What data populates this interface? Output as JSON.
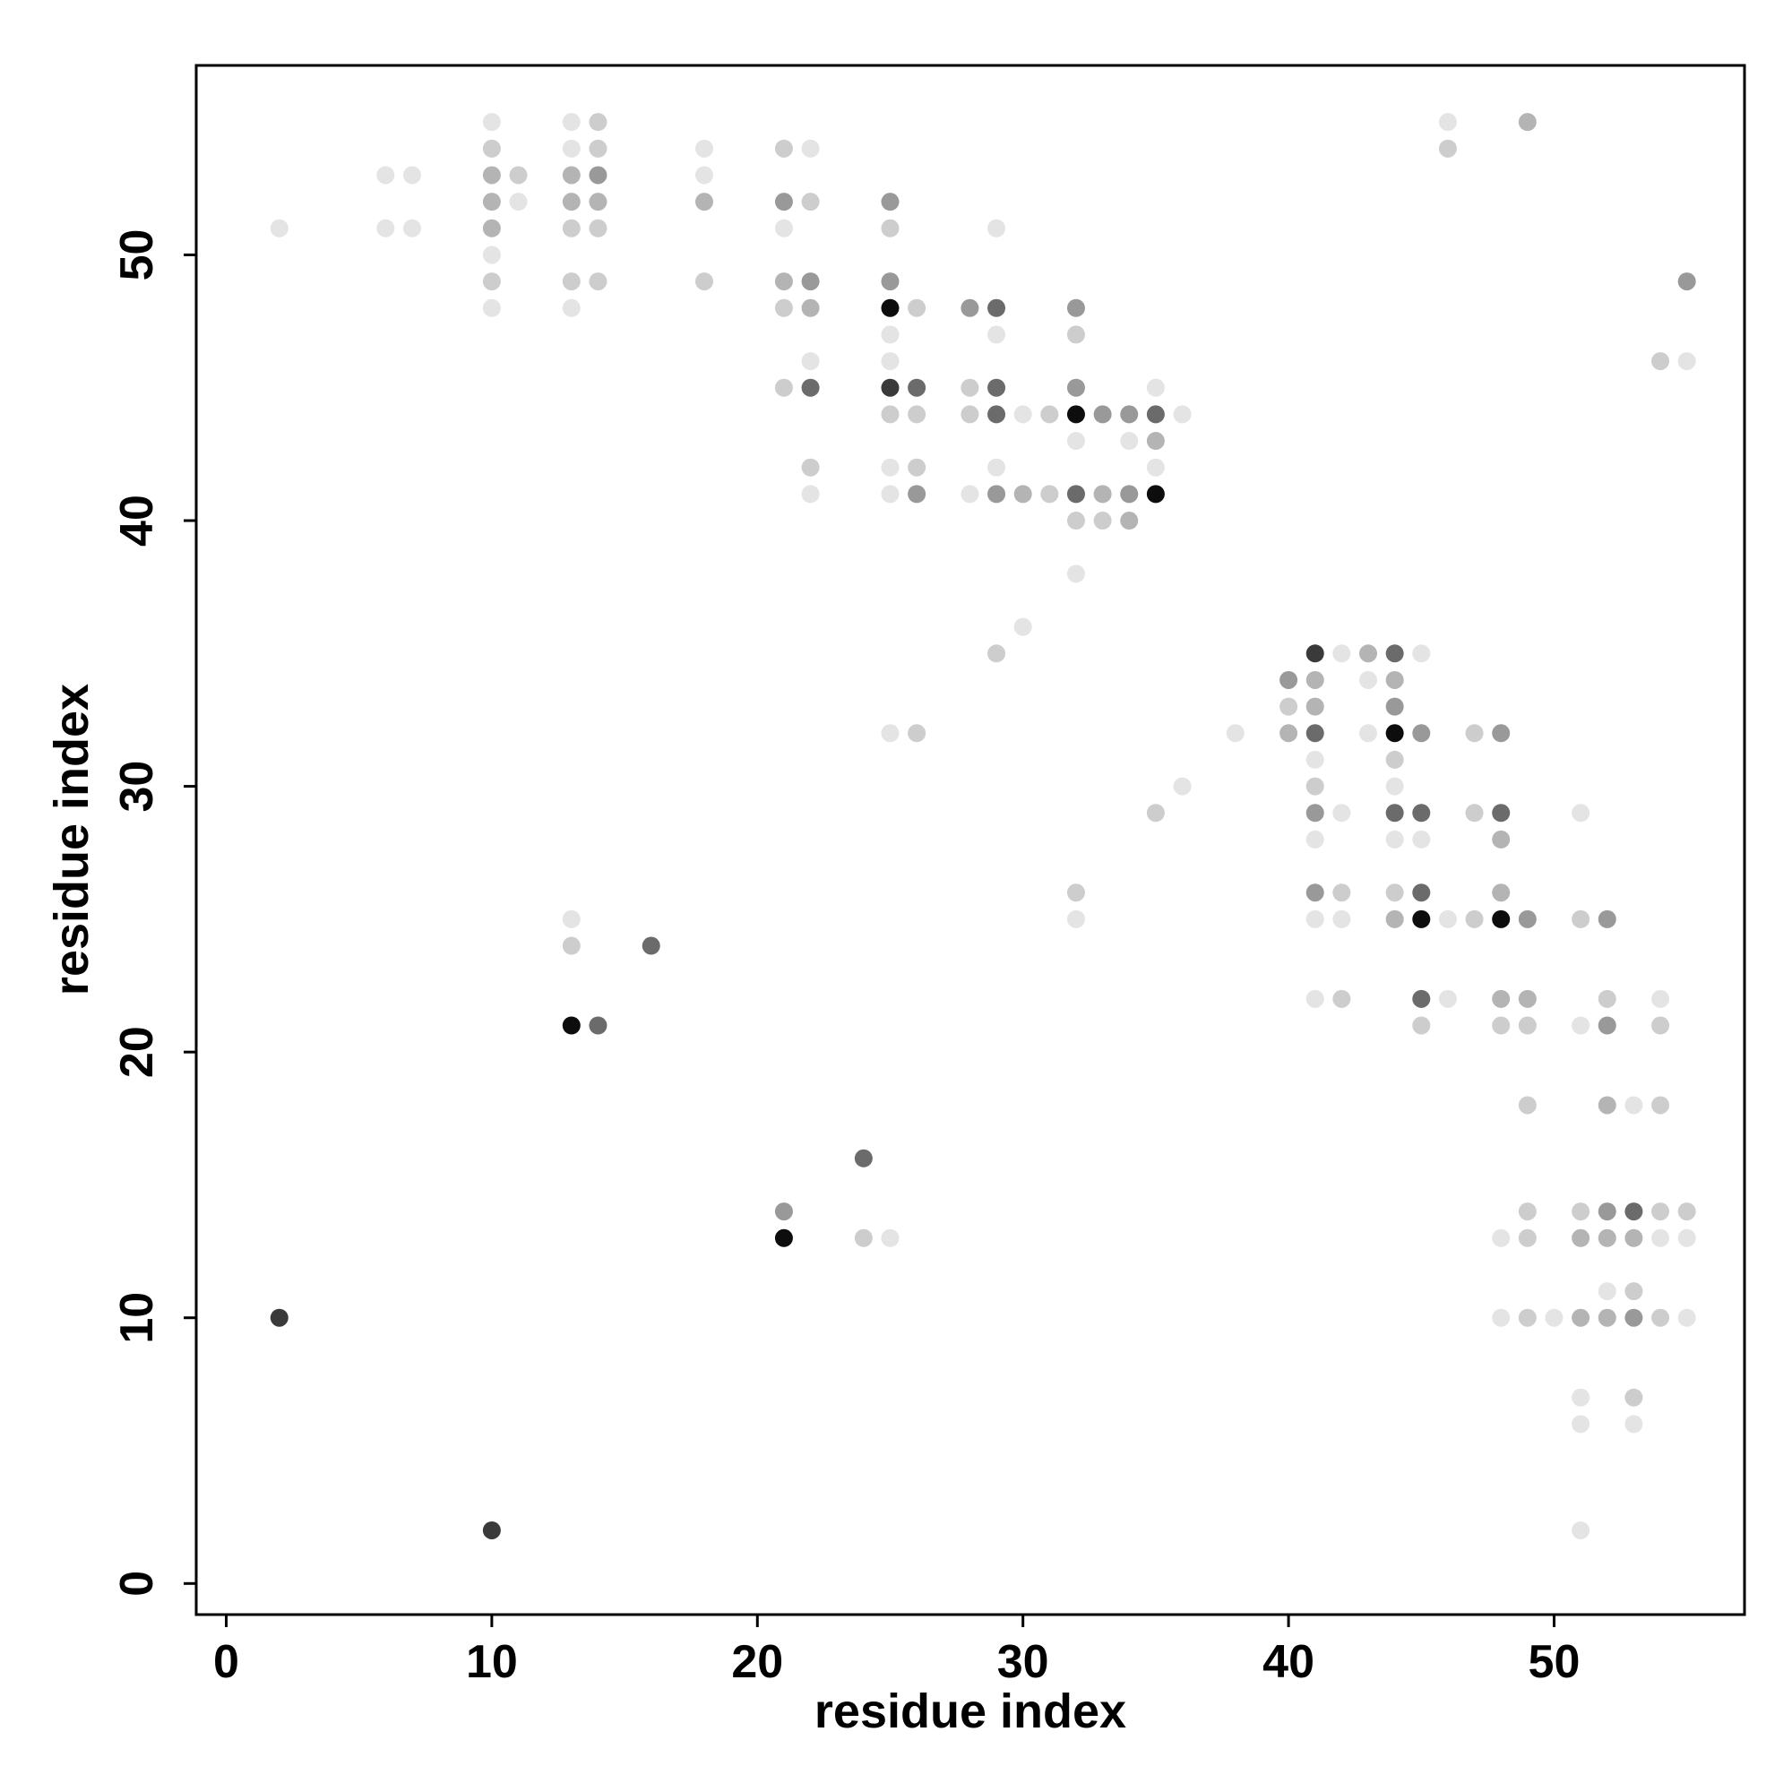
{
  "chart_data": {
    "type": "scatter",
    "x_label": "residue index",
    "y_label": "residue index",
    "xlim": [
      -1.13,
      57.17
    ],
    "ylim": [
      -1.17,
      57.13
    ],
    "xticks": [
      0,
      10,
      20,
      30,
      40,
      50
    ],
    "yticks": [
      0,
      10,
      20,
      30,
      40,
      50
    ],
    "x": [
      10,
      13,
      14,
      46,
      49,
      10,
      13,
      14,
      18,
      21,
      22,
      46,
      6,
      7,
      10,
      11,
      13,
      14,
      18,
      10,
      11,
      13,
      14,
      18,
      21,
      22,
      25,
      2,
      6,
      7,
      10,
      13,
      14,
      21,
      25,
      29,
      10,
      10,
      13,
      14,
      18,
      21,
      22,
      25,
      55,
      10,
      13,
      21,
      22,
      25,
      26,
      28,
      29,
      32,
      25,
      29,
      32,
      22,
      25,
      54,
      55,
      21,
      22,
      25,
      26,
      28,
      29,
      32,
      35,
      25,
      26,
      28,
      29,
      30,
      31,
      32,
      33,
      34,
      35,
      36,
      32,
      34,
      35,
      22,
      25,
      26,
      29,
      35,
      22,
      25,
      26,
      28,
      29,
      30,
      31,
      32,
      33,
      34,
      35,
      32,
      33,
      34,
      32,
      30,
      29,
      41,
      42,
      43,
      44,
      45,
      40,
      41,
      43,
      44,
      40,
      41,
      44,
      25,
      26,
      38,
      40,
      41,
      43,
      44,
      45,
      47,
      48,
      41,
      44,
      36,
      41,
      44,
      35,
      41,
      42,
      44,
      45,
      47,
      48,
      51,
      41,
      44,
      45,
      48,
      32,
      41,
      42,
      44,
      45,
      48,
      13,
      32,
      41,
      42,
      44,
      45,
      46,
      47,
      48,
      49,
      51,
      52,
      13,
      16,
      41,
      42,
      45,
      46,
      48,
      49,
      52,
      54,
      13,
      14,
      45,
      48,
      49,
      51,
      52,
      54,
      49,
      52,
      53,
      54,
      24,
      21,
      49,
      51,
      52,
      53,
      54,
      55,
      21,
      24,
      25,
      48,
      49,
      51,
      52,
      53,
      54,
      55,
      52,
      53,
      2,
      48,
      49,
      50,
      51,
      52,
      53,
      54,
      55,
      51,
      53,
      51,
      53,
      10,
      51
    ],
    "y": [
      55,
      55,
      55,
      55,
      55,
      54,
      54,
      54,
      54,
      54,
      54,
      54,
      53,
      53,
      53,
      53,
      53,
      53,
      53,
      52,
      52,
      52,
      52,
      52,
      52,
      52,
      52,
      51,
      51,
      51,
      51,
      51,
      51,
      51,
      51,
      51,
      50,
      49,
      49,
      49,
      49,
      49,
      49,
      49,
      49,
      48,
      48,
      48,
      48,
      48,
      48,
      48,
      48,
      48,
      47,
      47,
      47,
      46,
      46,
      46,
      46,
      45,
      45,
      45,
      45,
      45,
      45,
      45,
      45,
      44,
      44,
      44,
      44,
      44,
      44,
      44,
      44,
      44,
      44,
      44,
      43,
      43,
      43,
      42,
      42,
      42,
      42,
      42,
      41,
      41,
      41,
      41,
      41,
      41,
      41,
      41,
      41,
      41,
      41,
      40,
      40,
      40,
      38,
      36,
      35,
      35,
      35,
      35,
      35,
      35,
      34,
      34,
      34,
      34,
      33,
      33,
      33,
      32,
      32,
      32,
      32,
      32,
      32,
      32,
      32,
      32,
      32,
      31,
      31,
      30,
      30,
      30,
      29,
      29,
      29,
      29,
      29,
      29,
      29,
      29,
      28,
      28,
      28,
      28,
      26,
      26,
      26,
      26,
      26,
      26,
      25,
      25,
      25,
      25,
      25,
      25,
      25,
      25,
      25,
      25,
      25,
      25,
      24,
      24,
      22,
      22,
      22,
      22,
      22,
      22,
      22,
      22,
      21,
      21,
      21,
      21,
      21,
      21,
      21,
      21,
      18,
      18,
      18,
      18,
      16,
      14,
      14,
      14,
      14,
      14,
      14,
      14,
      13,
      13,
      13,
      13,
      13,
      13,
      13,
      13,
      13,
      13,
      11,
      11,
      10,
      10,
      10,
      10,
      10,
      10,
      10,
      10,
      10,
      7,
      7,
      6,
      6,
      2,
      2
    ],
    "colors": [
      "#e4e4e4",
      "#e4e4e4",
      "#cdcdcd",
      "#e4e4e4",
      "#b4b4b4",
      "#cdcdcd",
      "#e4e4e4",
      "#cdcdcd",
      "#e4e4e4",
      "#cdcdcd",
      "#e4e4e4",
      "#cdcdcd",
      "#e4e4e4",
      "#e4e4e4",
      "#b4b4b4",
      "#cdcdcd",
      "#b4b4b4",
      "#999999",
      "#e4e4e4",
      "#b4b4b4",
      "#e4e4e4",
      "#b4b4b4",
      "#b4b4b4",
      "#b4b4b4",
      "#999999",
      "#cdcdcd",
      "#999999",
      "#e4e4e4",
      "#e4e4e4",
      "#e4e4e4",
      "#b4b4b4",
      "#cdcdcd",
      "#cdcdcd",
      "#e4e4e4",
      "#cdcdcd",
      "#e4e4e4",
      "#e4e4e4",
      "#cdcdcd",
      "#cdcdcd",
      "#cdcdcd",
      "#cdcdcd",
      "#b4b4b4",
      "#999999",
      "#999999",
      "#999999",
      "#e4e4e4",
      "#e4e4e4",
      "#cdcdcd",
      "#b4b4b4",
      "#0d0d0d",
      "#cdcdcd",
      "#999999",
      "#6b6b6b",
      "#999999",
      "#e4e4e4",
      "#e4e4e4",
      "#cdcdcd",
      "#e4e4e4",
      "#e4e4e4",
      "#cdcdcd",
      "#e4e4e4",
      "#cdcdcd",
      "#6b6b6b",
      "#3a3a3a",
      "#6b6b6b",
      "#cdcdcd",
      "#6b6b6b",
      "#999999",
      "#e4e4e4",
      "#cdcdcd",
      "#cdcdcd",
      "#cdcdcd",
      "#6b6b6b",
      "#e4e4e4",
      "#cdcdcd",
      "#0d0d0d",
      "#999999",
      "#999999",
      "#6b6b6b",
      "#e4e4e4",
      "#e4e4e4",
      "#e4e4e4",
      "#b4b4b4",
      "#cdcdcd",
      "#e4e4e4",
      "#cdcdcd",
      "#e4e4e4",
      "#e4e4e4",
      "#e4e4e4",
      "#e4e4e4",
      "#999999",
      "#e4e4e4",
      "#999999",
      "#b4b4b4",
      "#cdcdcd",
      "#6b6b6b",
      "#b4b4b4",
      "#999999",
      "#0d0d0d",
      "#cdcdcd",
      "#cdcdcd",
      "#b4b4b4",
      "#e4e4e4",
      "#e4e4e4",
      "#cdcdcd",
      "#3a3a3a",
      "#e4e4e4",
      "#b4b4b4",
      "#6b6b6b",
      "#e4e4e4",
      "#999999",
      "#b4b4b4",
      "#e4e4e4",
      "#b4b4b4",
      "#cdcdcd",
      "#b4b4b4",
      "#999999",
      "#e4e4e4",
      "#cdcdcd",
      "#e4e4e4",
      "#b4b4b4",
      "#6b6b6b",
      "#e4e4e4",
      "#0d0d0d",
      "#999999",
      "#cdcdcd",
      "#999999",
      "#e4e4e4",
      "#cdcdcd",
      "#e4e4e4",
      "#cdcdcd",
      "#e4e4e4",
      "#cdcdcd",
      "#999999",
      "#e4e4e4",
      "#6b6b6b",
      "#6b6b6b",
      "#cdcdcd",
      "#6b6b6b",
      "#e4e4e4",
      "#e4e4e4",
      "#e4e4e4",
      "#e4e4e4",
      "#b4b4b4",
      "#cdcdcd",
      "#999999",
      "#cdcdcd",
      "#cdcdcd",
      "#6b6b6b",
      "#b4b4b4",
      "#e4e4e4",
      "#e4e4e4",
      "#e4e4e4",
      "#e4e4e4",
      "#b4b4b4",
      "#0d0d0d",
      "#e4e4e4",
      "#cdcdcd",
      "#0d0d0d",
      "#999999",
      "#cdcdcd",
      "#999999",
      "#cdcdcd",
      "#6b6b6b",
      "#e4e4e4",
      "#cdcdcd",
      "#6b6b6b",
      "#e4e4e4",
      "#b4b4b4",
      "#b4b4b4",
      "#cdcdcd",
      "#e4e4e4",
      "#0d0d0d",
      "#6b6b6b",
      "#cdcdcd",
      "#cdcdcd",
      "#cdcdcd",
      "#e4e4e4",
      "#999999",
      "#cdcdcd",
      "#cdcdcd",
      "#b4b4b4",
      "#e4e4e4",
      "#cdcdcd",
      "#6b6b6b",
      "#999999",
      "#cdcdcd",
      "#cdcdcd",
      "#999999",
      "#6b6b6b",
      "#cdcdcd",
      "#cdcdcd",
      "#0d0d0d",
      "#cdcdcd",
      "#e4e4e4",
      "#e4e4e4",
      "#cdcdcd",
      "#b4b4b4",
      "#b4b4b4",
      "#b4b4b4",
      "#e4e4e4",
      "#e4e4e4",
      "#e4e4e4",
      "#cdcdcd",
      "#3a3a3a",
      "#e4e4e4",
      "#cdcdcd",
      "#e4e4e4",
      "#b4b4b4",
      "#b4b4b4",
      "#999999",
      "#cdcdcd",
      "#e4e4e4",
      "#e4e4e4",
      "#cdcdcd",
      "#e4e4e4",
      "#e4e4e4",
      "#3a3a3a",
      "#e4e4e4"
    ]
  }
}
